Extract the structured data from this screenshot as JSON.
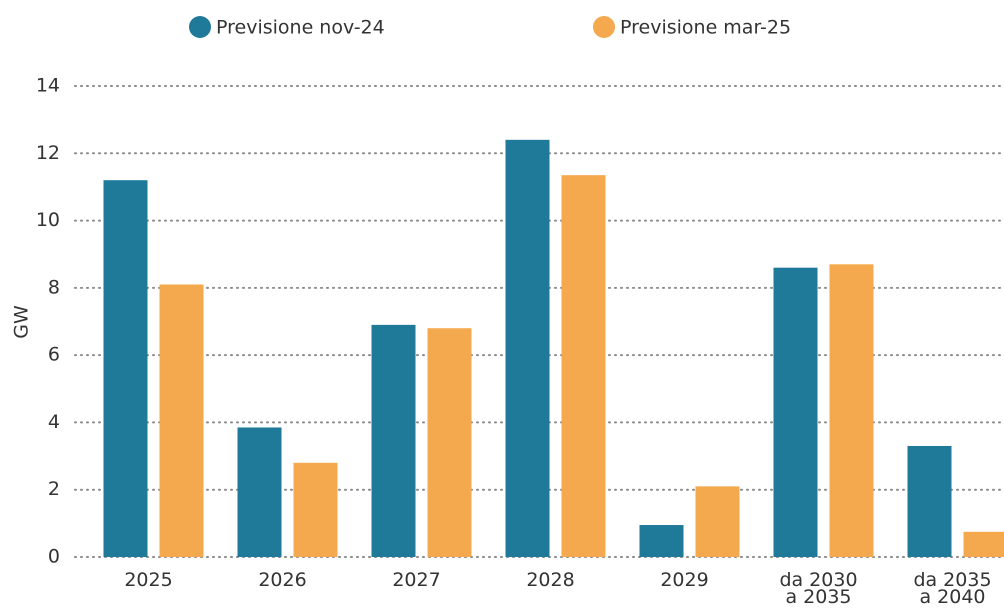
{
  "chart_data": {
    "type": "bar",
    "y_label": "GW",
    "categories": [
      "2025",
      "2026",
      "2027",
      "2028",
      "2029",
      "da 2030\na 2035",
      "da 2035\na 2040"
    ],
    "series": [
      {
        "name": "Previsione nov-24",
        "color": "#1f7a99",
        "values": [
          11.2,
          3.85,
          6.9,
          12.4,
          0.95,
          8.6,
          3.3
        ]
      },
      {
        "name": "Previsione mar-25",
        "color": "#f5a94e",
        "values": [
          8.1,
          2.8,
          6.8,
          11.35,
          2.1,
          8.7,
          0.75
        ]
      }
    ],
    "ylim": [
      0,
      14
    ],
    "yticks": [
      0,
      2,
      4,
      6,
      8,
      10,
      12,
      14
    ],
    "grid": true,
    "legend": "top"
  }
}
